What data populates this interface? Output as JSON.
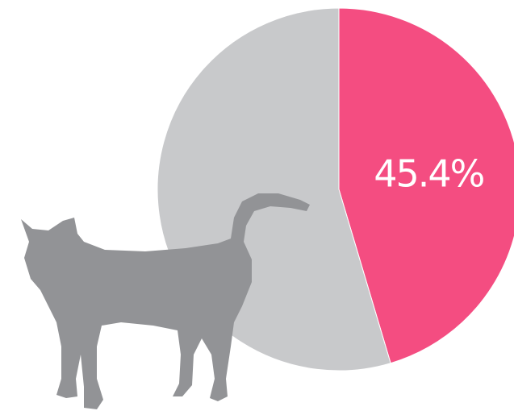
{
  "chart_data": {
    "type": "pie",
    "values": [
      45.4,
      54.6
    ],
    "value_labels": [
      "45.4%",
      null
    ],
    "colors": [
      "#f44d81",
      "#c8c9cb"
    ],
    "start_angle": 0,
    "direction": "clockwise"
  }
}
